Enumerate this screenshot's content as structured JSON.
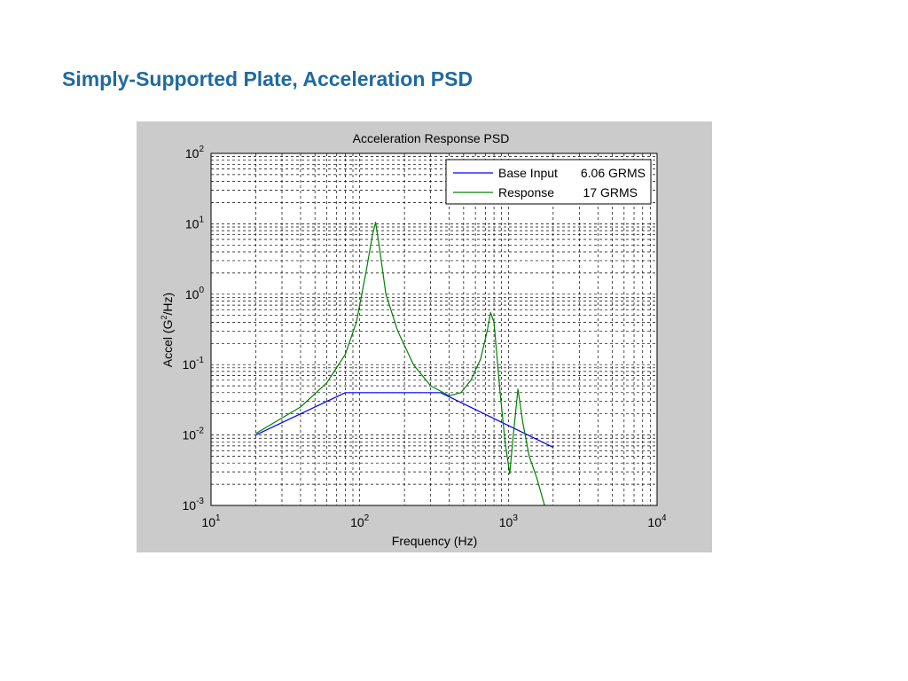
{
  "slide": {
    "title": "Simply-Supported Plate, Acceleration PSD"
  },
  "chart_data": {
    "type": "line",
    "title": "Acceleration Response PSD",
    "xlabel": "Frequency (Hz)",
    "ylabel_parts": [
      "Accel (G",
      "2",
      "/Hz)"
    ],
    "xscale": "log",
    "yscale": "log",
    "xlim": [
      10,
      10000
    ],
    "ylim": [
      0.001,
      100
    ],
    "x_ticks": [
      {
        "value": 10,
        "base": "10",
        "exp": "1"
      },
      {
        "value": 100,
        "base": "10",
        "exp": "2"
      },
      {
        "value": 1000,
        "base": "10",
        "exp": "3"
      },
      {
        "value": 10000,
        "base": "10",
        "exp": "4"
      }
    ],
    "y_ticks": [
      {
        "value": 0.001,
        "base": "10",
        "exp": "-3"
      },
      {
        "value": 0.01,
        "base": "10",
        "exp": "-2"
      },
      {
        "value": 0.1,
        "base": "10",
        "exp": "-1"
      },
      {
        "value": 1,
        "base": "10",
        "exp": "0"
      },
      {
        "value": 10,
        "base": "10",
        "exp": "1"
      },
      {
        "value": 100,
        "base": "10",
        "exp": "2"
      }
    ],
    "grid": true,
    "legend_position": "top-right",
    "series": [
      {
        "name": "Base Input",
        "legend_value": "6.06 GRMS",
        "color": "#0000ff",
        "points": [
          [
            20,
            0.01
          ],
          [
            80,
            0.04
          ],
          [
            350,
            0.04
          ],
          [
            2000,
            0.0067
          ]
        ]
      },
      {
        "name": "Response",
        "legend_value": "17 GRMS",
        "color": "#008000",
        "points": [
          [
            20,
            0.0105
          ],
          [
            40,
            0.025
          ],
          [
            60,
            0.055
          ],
          [
            80,
            0.14
          ],
          [
            95,
            0.4
          ],
          [
            110,
            2.0
          ],
          [
            122,
            7.0
          ],
          [
            128,
            10.5
          ],
          [
            135,
            5.0
          ],
          [
            150,
            1.0
          ],
          [
            180,
            0.3
          ],
          [
            230,
            0.1
          ],
          [
            300,
            0.05
          ],
          [
            400,
            0.036
          ],
          [
            480,
            0.04
          ],
          [
            560,
            0.06
          ],
          [
            650,
            0.12
          ],
          [
            720,
            0.3
          ],
          [
            760,
            0.55
          ],
          [
            800,
            0.4
          ],
          [
            880,
            0.04
          ],
          [
            950,
            0.008
          ],
          [
            1020,
            0.0028
          ],
          [
            1080,
            0.01
          ],
          [
            1160,
            0.045
          ],
          [
            1250,
            0.015
          ],
          [
            1380,
            0.005
          ],
          [
            1550,
            0.0025
          ],
          [
            1750,
            0.001
          ]
        ]
      }
    ]
  }
}
